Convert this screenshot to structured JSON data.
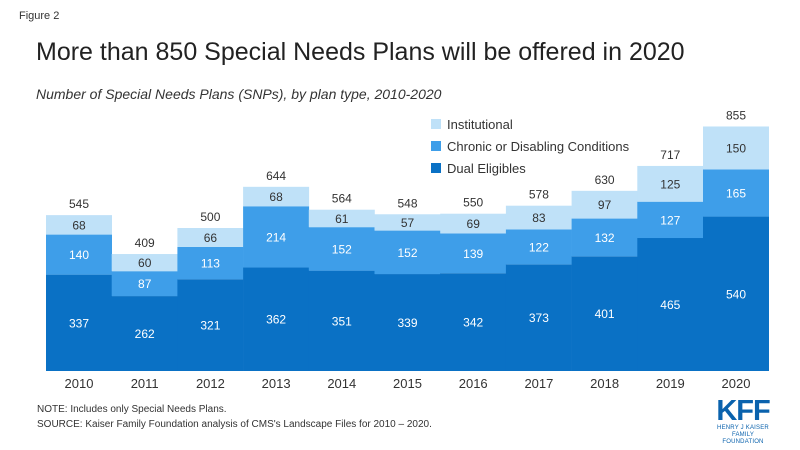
{
  "figure_label": "Figure 2",
  "title": "More than 850 Special Needs Plans will be offered in 2020",
  "subtitle": "Number of Special Needs Plans (SNPs), by plan type, 2010-2020",
  "legend": {
    "institutional": "Institutional",
    "chronic": "Chronic or Disabling Conditions",
    "dual": "Dual Eligibles"
  },
  "notes": {
    "note": "NOTE: Includes only Special Needs Plans.",
    "source": "SOURCE: Kaiser Family Foundation analysis of CMS's Landscape Files for 2010 – 2020."
  },
  "logo": {
    "mark": "KFF",
    "line1": "HENRY J KAISER",
    "line2": "FAMILY FOUNDATION"
  },
  "colors": {
    "dual": "#0a71c5",
    "chronic": "#3e9ee9",
    "institutional": "#bfe1f8"
  },
  "chart_data": {
    "type": "bar",
    "stacked": true,
    "categories": [
      "2010",
      "2011",
      "2012",
      "2013",
      "2014",
      "2015",
      "2016",
      "2017",
      "2018",
      "2019",
      "2020"
    ],
    "series": [
      {
        "name": "Dual Eligibles",
        "values": [
          337,
          262,
          321,
          362,
          351,
          339,
          342,
          373,
          401,
          465,
          540
        ]
      },
      {
        "name": "Chronic or Disabling Conditions",
        "values": [
          140,
          87,
          113,
          214,
          152,
          152,
          139,
          122,
          132,
          127,
          165
        ]
      },
      {
        "name": "Institutional",
        "values": [
          68,
          60,
          66,
          68,
          61,
          57,
          69,
          83,
          97,
          125,
          150
        ]
      }
    ],
    "totals": [
      545,
      409,
      500,
      644,
      564,
      548,
      550,
      578,
      630,
      717,
      855
    ],
    "title": "More than 850 Special Needs Plans will be offered in 2020",
    "legend_position": "top-right",
    "grid": false
  }
}
